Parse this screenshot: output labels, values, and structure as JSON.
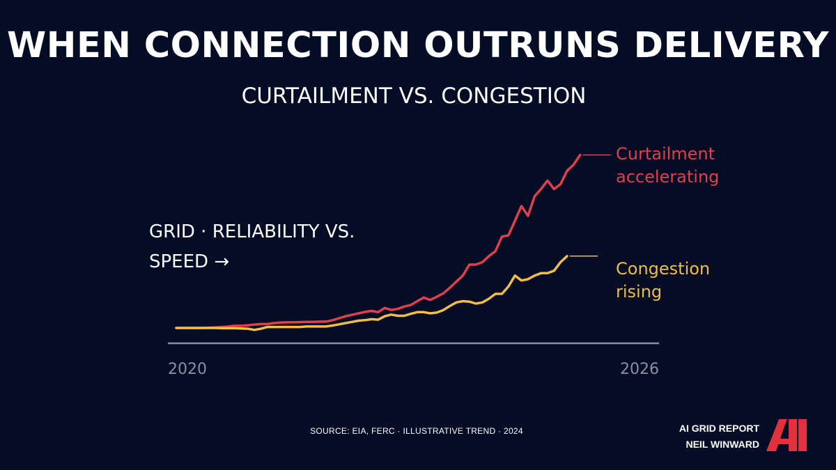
{
  "title": "WHEN CONNECTION OUTRUNS DELIVERY",
  "subtitle": "CURTAILMENT VS. CONGESTION",
  "annotation": "GRID · RELIABILITY VS. SPEED →",
  "source": "SOURCE: EIA, FERC · ILLUSTRATIVE TREND · 2024",
  "brand": {
    "line1": "AI GRID REPORT",
    "line2": "NEIL WINWARD",
    "logo_text": "AI",
    "logo_color": "#e0313c"
  },
  "colors": {
    "background": "#050d26",
    "curtailment": "#e0404c",
    "congestion": "#f2bd47",
    "axis": "#8a8fa3"
  },
  "chart_data": {
    "type": "line",
    "x_tick_labels": [
      "2020",
      "2026"
    ],
    "grid": false,
    "y_axis_labels": false,
    "series": [
      {
        "name": "Curtailment accelerating",
        "label_lines": [
          "Curtailment",
          "accelerating"
        ],
        "color": "#e0404c",
        "values": [
          0.0,
          0.0,
          0.0,
          0.0,
          0.0,
          0.1,
          0.2,
          0.4,
          0.6,
          0.9,
          0.9,
          1.1,
          1.4,
          1.6,
          1.6,
          2.0,
          2.2,
          2.3,
          2.3,
          2.4,
          2.5,
          2.5,
          2.6,
          2.6,
          3.2,
          4.0,
          4.8,
          5.4,
          6.0,
          6.6,
          7.0,
          6.5,
          8.2,
          7.4,
          7.8,
          8.8,
          9.4,
          11.0,
          12.5,
          11.5,
          12.8,
          14.2,
          16.5,
          19.0,
          21.5,
          26.0,
          26.0,
          27.0,
          29.5,
          31.5,
          37.5,
          38.0,
          44.0,
          50.0,
          46.0,
          54.0,
          57.0,
          60.5,
          57.0,
          59.0,
          64.5,
          67.0,
          71.0
        ]
      },
      {
        "name": "Congestion rising",
        "label_lines": [
          "Congestion",
          "rising"
        ],
        "color": "#f2bd47",
        "values": [
          0.0,
          0.0,
          0.0,
          0.0,
          0.0,
          0.0,
          0.0,
          -0.1,
          -0.1,
          -0.1,
          -0.2,
          -0.3,
          -0.8,
          -0.3,
          0.4,
          0.4,
          0.4,
          0.4,
          0.4,
          0.4,
          0.6,
          0.6,
          0.6,
          0.6,
          1.0,
          1.5,
          2.0,
          2.5,
          3.0,
          3.2,
          3.6,
          3.4,
          4.8,
          5.5,
          5.0,
          5.0,
          5.8,
          6.5,
          6.5,
          6.0,
          6.3,
          7.3,
          9.0,
          10.5,
          11.0,
          10.8,
          10.0,
          10.5,
          12.0,
          14.0,
          14.0,
          17.0,
          21.5,
          19.5,
          20.0,
          21.5,
          22.5,
          22.5,
          23.5,
          27.0,
          29.5
        ]
      }
    ]
  }
}
